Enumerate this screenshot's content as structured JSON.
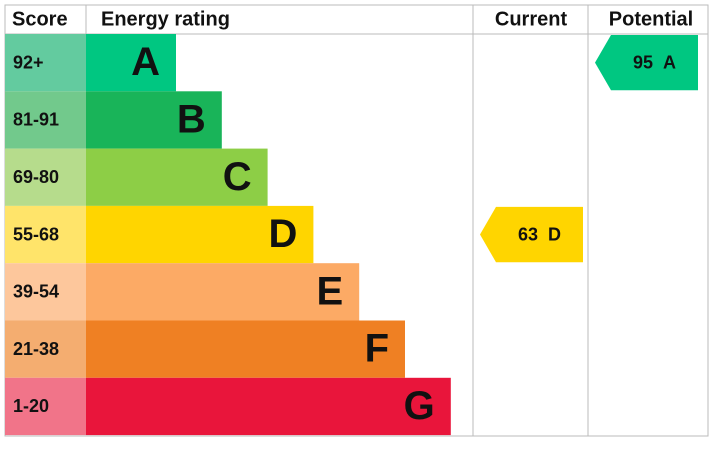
{
  "headers": {
    "score": "Score",
    "rating": "Energy rating",
    "current": "Current",
    "potential": "Potential"
  },
  "bands": [
    {
      "score": "92+",
      "letter": "A",
      "color": "#00c781",
      "score_color": "#63cb9f"
    },
    {
      "score": "81-91",
      "letter": "B",
      "color": "#19b459",
      "score_color": "#72c98c"
    },
    {
      "score": "69-80",
      "letter": "C",
      "color": "#8dce46",
      "score_color": "#b6dc8c"
    },
    {
      "score": "55-68",
      "letter": "D",
      "color": "#ffd500",
      "score_color": "#ffe46a"
    },
    {
      "score": "39-54",
      "letter": "E",
      "color": "#fcaa65",
      "score_color": "#fdc79c"
    },
    {
      "score": "21-38",
      "letter": "F",
      "color": "#ef8023",
      "score_color": "#f4ad70"
    },
    {
      "score": "1-20",
      "letter": "G",
      "color": "#e9153b",
      "score_color": "#f17489"
    }
  ],
  "current": {
    "value": 63,
    "letter": "D"
  },
  "potential": {
    "value": 95,
    "letter": "A"
  }
}
